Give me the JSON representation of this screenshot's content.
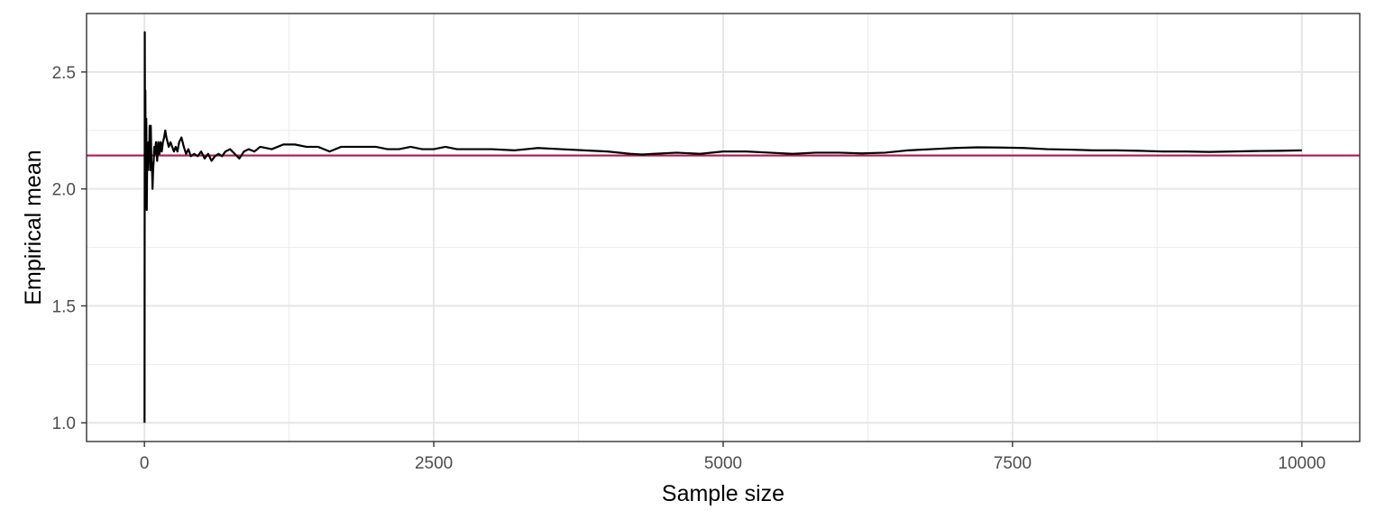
{
  "chart_data": {
    "type": "line",
    "title": "",
    "xlabel": "Sample size",
    "ylabel": "Empirical mean",
    "xlim": [
      -500,
      10500
    ],
    "ylim": [
      0.92,
      2.75
    ],
    "x_ticks": [
      0,
      2500,
      5000,
      7500,
      10000
    ],
    "x_tick_labels": [
      "0",
      "2500",
      "5000",
      "7500",
      "10000"
    ],
    "y_ticks": [
      1.0,
      1.5,
      2.0,
      2.5
    ],
    "y_tick_labels": [
      "1.0",
      "1.5",
      "2.0",
      "2.5"
    ],
    "grid": true,
    "legend": "none",
    "reference_line": {
      "orientation": "horizontal",
      "value": 2.143,
      "color": "#b5174b"
    },
    "series": [
      {
        "color": "#000000",
        "x": [
          1,
          3,
          5,
          8,
          12,
          16,
          20,
          25,
          30,
          35,
          40,
          45,
          50,
          55,
          60,
          65,
          70,
          75,
          80,
          85,
          90,
          100,
          110,
          120,
          130,
          140,
          150,
          160,
          170,
          180,
          190,
          200,
          210,
          225,
          240,
          255,
          270,
          285,
          300,
          320,
          340,
          360,
          380,
          400,
          430,
          460,
          490,
          520,
          550,
          580,
          610,
          640,
          670,
          700,
          740,
          780,
          820,
          860,
          900,
          950,
          1000,
          1100,
          1200,
          1300,
          1400,
          1500,
          1600,
          1700,
          1800,
          1900,
          2000,
          2100,
          2200,
          2300,
          2400,
          2500,
          2600,
          2700,
          2800,
          2900,
          3000,
          3200,
          3400,
          3600,
          3800,
          4000,
          4200,
          4300,
          4400,
          4600,
          4800,
          5000,
          5200,
          5400,
          5600,
          5800,
          6000,
          6200,
          6400,
          6600,
          6800,
          7000,
          7200,
          7400,
          7600,
          7800,
          8000,
          8200,
          8400,
          8600,
          8800,
          9000,
          9200,
          9400,
          9600,
          9800,
          10000
        ],
        "y": [
          1.0,
          2.67,
          2.2,
          2.42,
          1.92,
          2.3,
          1.91,
          2.19,
          2.08,
          2.2,
          2.12,
          2.27,
          2.08,
          2.27,
          2.12,
          2.1,
          2.0,
          2.08,
          2.12,
          2.18,
          2.15,
          2.2,
          2.12,
          2.2,
          2.15,
          2.2,
          2.16,
          2.2,
          2.22,
          2.25,
          2.22,
          2.2,
          2.18,
          2.2,
          2.18,
          2.16,
          2.18,
          2.16,
          2.2,
          2.22,
          2.18,
          2.15,
          2.17,
          2.14,
          2.15,
          2.14,
          2.16,
          2.13,
          2.15,
          2.12,
          2.14,
          2.15,
          2.14,
          2.16,
          2.17,
          2.15,
          2.13,
          2.16,
          2.17,
          2.16,
          2.18,
          2.17,
          2.19,
          2.19,
          2.18,
          2.18,
          2.16,
          2.18,
          2.18,
          2.18,
          2.18,
          2.17,
          2.17,
          2.18,
          2.17,
          2.17,
          2.18,
          2.17,
          2.17,
          2.17,
          2.17,
          2.165,
          2.175,
          2.17,
          2.165,
          2.16,
          2.15,
          2.147,
          2.15,
          2.155,
          2.15,
          2.16,
          2.16,
          2.155,
          2.15,
          2.155,
          2.155,
          2.152,
          2.155,
          2.165,
          2.17,
          2.175,
          2.178,
          2.177,
          2.175,
          2.17,
          2.168,
          2.165,
          2.165,
          2.163,
          2.16,
          2.16,
          2.158,
          2.16,
          2.162,
          2.163,
          2.165
        ]
      }
    ]
  }
}
